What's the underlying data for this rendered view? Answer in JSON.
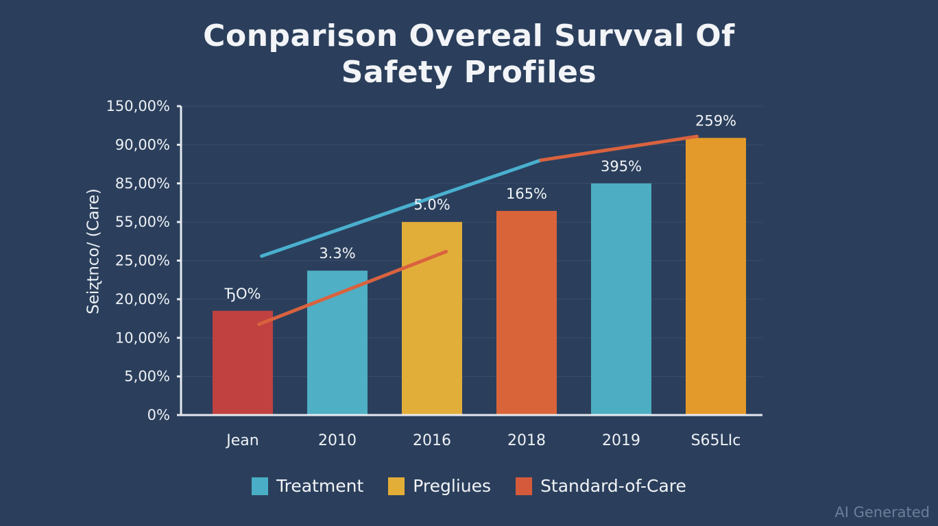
{
  "chart_data": {
    "type": "bar",
    "title_lines": [
      "Conparison Overeal Survval Of",
      "Safety Profiles"
    ],
    "xlabel": "",
    "ylabel": "Seiʐtnco/ (Care)",
    "y_ticks": [
      {
        "label": "0%",
        "value": 0
      },
      {
        "label": "5,00%",
        "value": 5
      },
      {
        "label": "10,00%",
        "value": 10
      },
      {
        "label": "20,00%",
        "value": 20
      },
      {
        "label": "25,00%",
        "value": 25
      },
      {
        "label": "55,00%",
        "value": 55
      },
      {
        "label": "85,00%",
        "value": 85
      },
      {
        "label": "90,00%",
        "value": 90
      },
      {
        "label": "150,00%",
        "value": 150
      }
    ],
    "ylim": [
      0,
      150
    ],
    "grid": true,
    "categories": [
      "Jean",
      "2010",
      "2016",
      "2018",
      "2019",
      "S65LIc"
    ],
    "bars": [
      {
        "category": "Jean",
        "value": 17,
        "series": "Standard-of-Care",
        "color": "#C0413F",
        "label": "ЂO%"
      },
      {
        "category": "2010",
        "value": 23.7,
        "series": "Treatment",
        "color": "#4FAFC4",
        "label": "3.3%"
      },
      {
        "category": "2016",
        "value": 55,
        "series": "Pregliues",
        "color": "#E2AE3A",
        "label": "5.0%"
      },
      {
        "category": "2018",
        "value": 63.6,
        "series": "Standard-of-Care",
        "color": "#D9643A",
        "label": "165%"
      },
      {
        "category": "2019",
        "value": 85,
        "series": "Treatment",
        "color": "#4DAEC3",
        "label": "395%"
      },
      {
        "category": "S65LIc",
        "value": 100.7,
        "series": "Pregliues",
        "color": "#E49A2A",
        "label": "259%"
      }
    ],
    "lines": [
      {
        "name": "Treatment trend",
        "color": "#4AB0CF",
        "points": [
          {
            "x": 0.2,
            "y": 28.5
          },
          {
            "x": 3.15,
            "y": 88
          }
        ]
      },
      {
        "name": "Standard-of-Care trend (upper)",
        "color": "#D9623F",
        "points": [
          {
            "x": 3.15,
            "y": 88
          },
          {
            "x": 4.8,
            "y": 103
          }
        ]
      },
      {
        "name": "Standard-of-Care trend (lower)",
        "color": "#D9623F",
        "points": [
          {
            "x": 0.17,
            "y": 13.5
          },
          {
            "x": 2.15,
            "y": 32
          }
        ]
      }
    ],
    "legend": {
      "position": "bottom",
      "entries": [
        {
          "name": "Treatment",
          "color": "#4AAFC6"
        },
        {
          "name": "Pregliues",
          "color": "#E3AE37"
        },
        {
          "name": "Standard-of-Care",
          "color": "#D45A3B"
        }
      ]
    }
  },
  "watermark": "AI Generated"
}
